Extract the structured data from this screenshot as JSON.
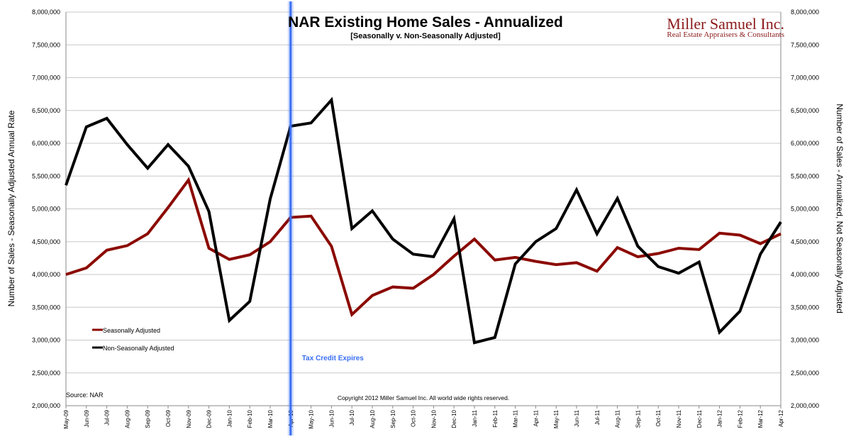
{
  "chart_data": {
    "type": "line",
    "title": "NAR Existing Home Sales - Annualized",
    "subtitle": "[Seasonally v. Non-Seasonally Adjusted]",
    "ylabel": "Number of Sales - Seasonally Adjusted Annual Rate",
    "ylabel_right": "Number of Sales - Annualized, Not Seasonally Adjusted",
    "ylim": [
      2000000,
      8000000
    ],
    "ytick_step": 500000,
    "yticks": [
      "2,000,000",
      "2,500,000",
      "3,000,000",
      "3,500,000",
      "4,000,000",
      "4,500,000",
      "5,000,000",
      "5,500,000",
      "6,000,000",
      "6,500,000",
      "7,000,000",
      "7,500,000",
      "8,000,000"
    ],
    "grid": true,
    "legend_placement": "lower-left",
    "categories": [
      "May-09",
      "Jun-09",
      "Jul-09",
      "Aug-09",
      "Sep-09",
      "Oct-09",
      "Nov-09",
      "Dec-09",
      "Jan-10",
      "Feb-10",
      "Mar-10",
      "Apr-10",
      "May-10",
      "Jun-10",
      "Jul-10",
      "Aug-10",
      "Sep-10",
      "Oct-10",
      "Nov-10",
      "Dec-10",
      "Jan-11",
      "Feb-11",
      "Mar-11",
      "Apr-11",
      "May-11",
      "Jun-11",
      "Jul-11",
      "Aug-11",
      "Sep-11",
      "Oct-11",
      "Nov-11",
      "Dec-11",
      "Jan-12",
      "Feb-12",
      "Mar-12",
      "Apr-12"
    ],
    "series": [
      {
        "name": "Seasonally Adjusted",
        "color": "#8b0a00",
        "values": [
          4000000,
          4100000,
          4370000,
          4440000,
          4620000,
          5020000,
          5440000,
          4400000,
          4230000,
          4300000,
          4500000,
          4870000,
          4890000,
          4430000,
          3390000,
          3680000,
          3810000,
          3790000,
          4000000,
          4280000,
          4540000,
          4220000,
          4260000,
          4200000,
          4150000,
          4180000,
          4050000,
          4410000,
          4270000,
          4320000,
          4400000,
          4380000,
          4630000,
          4600000,
          4470000,
          4620000
        ]
      },
      {
        "name": "Non-Seasonally Adjusted",
        "color": "#000000",
        "values": [
          5360000,
          6250000,
          6380000,
          5980000,
          5620000,
          5980000,
          5650000,
          4960000,
          3300000,
          3590000,
          5150000,
          6260000,
          6310000,
          6660000,
          4700000,
          4970000,
          4540000,
          4310000,
          4270000,
          4850000,
          2960000,
          3040000,
          4160000,
          4500000,
          4700000,
          5290000,
          4620000,
          5160000,
          4430000,
          4120000,
          4020000,
          4190000,
          3120000,
          3440000,
          4310000,
          4800000
        ]
      }
    ],
    "annotation": {
      "text": "Tax Credit Expires",
      "at": "Apr-10",
      "color": "#3a6ff2"
    }
  },
  "brand": {
    "name": "Miller Samuel Inc.",
    "tagline": "Real Estate Appraisers & Consultants",
    "color": "#8b1a1a"
  },
  "source": "Source: NAR",
  "copyright": "Copyright 2012 Miller Samuel Inc.  All world wide rights reserved."
}
